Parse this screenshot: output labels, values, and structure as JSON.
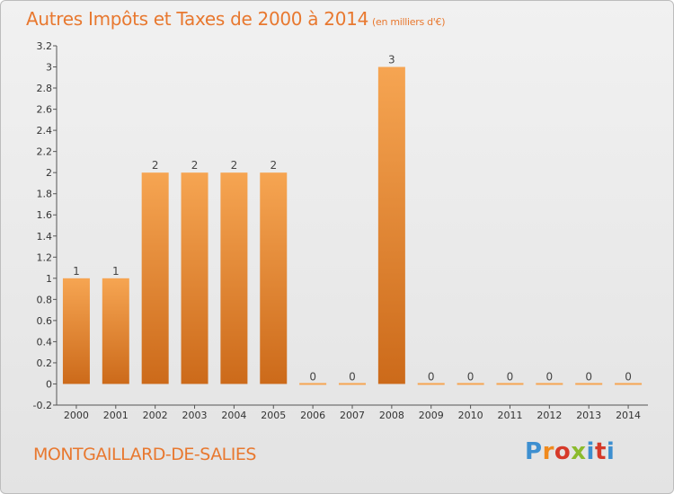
{
  "header": {
    "title": "Autres Impôts et Taxes de 2000 à 2014",
    "unit": "(en milliers d'€)"
  },
  "footer": {
    "place": "MONTGAILLARD-DE-SALIES",
    "logo": "Proxiti"
  },
  "colors": {
    "bar_top": "#f6a552",
    "bar_bottom": "#cc6a1a",
    "title": "#e8782f",
    "axis": "#555555"
  },
  "chart_data": {
    "type": "bar",
    "categories": [
      "2000",
      "2001",
      "2002",
      "2003",
      "2004",
      "2005",
      "2006",
      "2007",
      "2008",
      "2009",
      "2010",
      "2011",
      "2012",
      "2013",
      "2014"
    ],
    "values": [
      1,
      1,
      2,
      2,
      2,
      2,
      0,
      0,
      3,
      0,
      0,
      0,
      0,
      0,
      0
    ],
    "data_labels": [
      "1",
      "1",
      "2",
      "2",
      "2",
      "2",
      "0",
      "0",
      "3",
      "0",
      "0",
      "0",
      "0",
      "0",
      "0"
    ],
    "ylim": [
      -0.2,
      3.2
    ],
    "yticks": [
      "-0.2",
      "0",
      "0.2",
      "0.4",
      "0.6",
      "0.8",
      "1",
      "1.2",
      "1.4",
      "1.6",
      "1.8",
      "2",
      "2.2",
      "2.4",
      "2.6",
      "2.8",
      "3",
      "3.2"
    ],
    "grid": false,
    "xlabel": "",
    "ylabel": ""
  }
}
